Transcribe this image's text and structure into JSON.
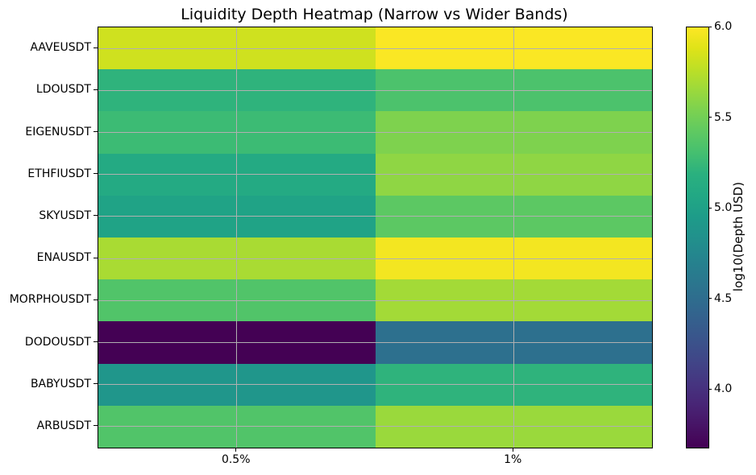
{
  "figure": {
    "background_color": "#ffffff",
    "spine_color": "#000000",
    "grid_color": "#b0b0b0"
  },
  "chart_data": {
    "type": "heatmap",
    "title": "Liquidity Depth Heatmap (Narrow vs Wider Bands)",
    "rows": [
      "AAVEUSDT",
      "LDOUSDT",
      "EIGENUSDT",
      "ETHFIUSDT",
      "SKYUSDT",
      "ENAUSDT",
      "MORPHOUSDT",
      "DODOUSDT",
      "BABYUSDT",
      "ARBUSDT"
    ],
    "columns": [
      "0.5%",
      "1%"
    ],
    "values": [
      [
        5.83,
        5.99
      ],
      [
        5.21,
        5.34
      ],
      [
        5.27,
        5.55
      ],
      [
        5.1,
        5.61
      ],
      [
        5.02,
        5.41
      ],
      [
        5.7,
        5.96
      ],
      [
        5.36,
        5.68
      ],
      [
        3.68,
        4.53
      ],
      [
        4.89,
        5.21
      ],
      [
        5.36,
        5.65
      ]
    ],
    "vmin": 3.68,
    "vmax": 6.0,
    "grid": true,
    "colorbar": {
      "label": "log10(Depth USD)",
      "ticks": [
        "6.0",
        "5.5",
        "5.0",
        "4.5",
        "4.0"
      ]
    },
    "colormap": {
      "name": "viridis",
      "stops": [
        "#440154",
        "#471365",
        "#482475",
        "#463480",
        "#414487",
        "#3b528b",
        "#355f8d",
        "#2f6c8e",
        "#2a788e",
        "#25848e",
        "#21918c",
        "#1e9c89",
        "#22a884",
        "#2ab07f",
        "#44bf70",
        "#5ec962",
        "#7ad151",
        "#9bd93c",
        "#bddf26",
        "#dfe318",
        "#fde725"
      ]
    }
  }
}
